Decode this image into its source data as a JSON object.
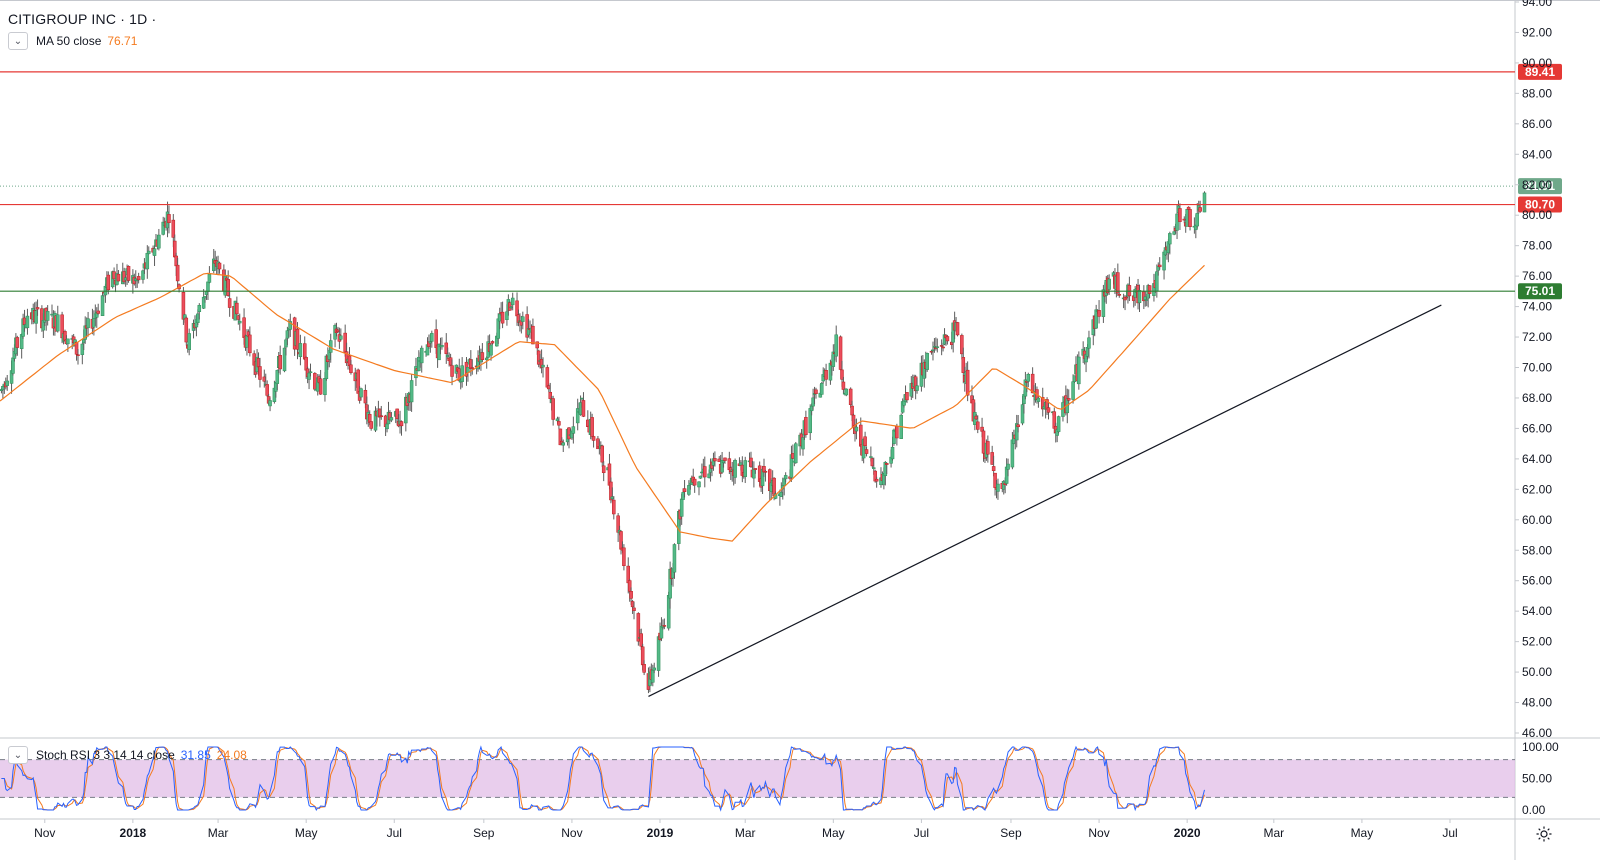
{
  "header": {
    "symbol_title": "CITIGROUP INC · 1D ·",
    "ma_label": "MA 50 close",
    "ma_value": "76.71"
  },
  "oscillator": {
    "label": "Stoch RSI 3 3 14 14 close",
    "k_value": "31.85",
    "d_value": "24.08"
  },
  "colors": {
    "up": "#53b987",
    "down": "#eb4d5c",
    "wick": "#5c5c5c",
    "ma": "#f47b20",
    "resistance": "#e53935",
    "support": "#2e7d32",
    "last_price": "#6fa88a",
    "stoch_k": "#2962ff",
    "stoch_d": "#f47b20",
    "stoch_band": "#e1bee7",
    "axis_text": "#131722",
    "grid": "#e0e3eb"
  },
  "icons": {
    "collapse": "chevron-down-icon",
    "settings": "gear-icon"
  },
  "chart_data": [
    {
      "type": "candlestick",
      "title": "CITIGROUP INC · 1D ·",
      "ylim": [
        46,
        94
      ],
      "y_ticks": [
        "94.00",
        "92.00",
        "90.00",
        "88.00",
        "86.00",
        "84.00",
        "82.00",
        "80.00",
        "78.00",
        "76.00",
        "74.00",
        "72.00",
        "70.00",
        "68.00",
        "66.00",
        "64.00",
        "62.00",
        "60.00",
        "58.00",
        "56.00",
        "54.00",
        "52.00",
        "50.00",
        "48.00",
        "46.00"
      ],
      "x_ticks": [
        "Nov",
        "2018",
        "Mar",
        "May",
        "Jul",
        "Sep",
        "Nov",
        "2019",
        "Mar",
        "May",
        "Jul",
        "Sep",
        "Nov",
        "2020",
        "Mar",
        "May",
        "Jul"
      ],
      "x_range": [
        "2017-10-01",
        "2020-08-15"
      ],
      "price_path": [
        [
          "2017-10-01",
          68.2
        ],
        [
          "2017-10-20",
          73.5
        ],
        [
          "2017-11-10",
          73.0
        ],
        [
          "2017-11-24",
          71.0
        ],
        [
          "2017-12-18",
          76.2
        ],
        [
          "2018-01-05",
          75.6
        ],
        [
          "2018-01-26",
          80.2
        ],
        [
          "2018-02-08",
          71.5
        ],
        [
          "2018-02-27",
          77.0
        ],
        [
          "2018-03-20",
          72.0
        ],
        [
          "2018-04-05",
          68.0
        ],
        [
          "2018-04-20",
          72.5
        ],
        [
          "2018-05-10",
          68.5
        ],
        [
          "2018-05-22",
          72.5
        ],
        [
          "2018-06-15",
          66.5
        ],
        [
          "2018-07-05",
          66.5
        ],
        [
          "2018-07-25",
          72.0
        ],
        [
          "2018-08-15",
          69.5
        ],
        [
          "2018-09-05",
          71.5
        ],
        [
          "2018-09-20",
          74.5
        ],
        [
          "2018-10-05",
          72.0
        ],
        [
          "2018-10-25",
          65.0
        ],
        [
          "2018-11-08",
          67.5
        ],
        [
          "2018-11-26",
          63.0
        ],
        [
          "2018-12-10",
          56.0
        ],
        [
          "2018-12-24",
          49.0
        ],
        [
          "2019-01-03",
          53.0
        ],
        [
          "2019-01-18",
          62.5
        ],
        [
          "2019-02-05",
          63.5
        ],
        [
          "2019-03-05",
          63.5
        ],
        [
          "2019-03-25",
          61.5
        ],
        [
          "2019-04-15",
          67.0
        ],
        [
          "2019-05-03",
          71.5
        ],
        [
          "2019-05-15",
          66.0
        ],
        [
          "2019-06-03",
          62.5
        ],
        [
          "2019-06-20",
          68.0
        ],
        [
          "2019-07-08",
          71.0
        ],
        [
          "2019-07-26",
          72.5
        ],
        [
          "2019-08-05",
          67.0
        ],
        [
          "2019-08-26",
          61.5
        ],
        [
          "2019-09-12",
          69.0
        ],
        [
          "2019-10-03",
          66.0
        ],
        [
          "2019-10-25",
          72.0
        ],
        [
          "2019-11-08",
          75.8
        ],
        [
          "2019-11-25",
          74.5
        ],
        [
          "2019-12-10",
          75.5
        ],
        [
          "2019-12-27",
          80.2
        ],
        [
          "2020-01-08",
          79.5
        ],
        [
          "2020-01-13",
          81.9
        ]
      ],
      "ma50_path": [
        [
          "2017-10-01",
          67.8
        ],
        [
          "2017-11-10",
          70.8
        ],
        [
          "2017-12-20",
          73.3
        ],
        [
          "2018-01-20",
          74.6
        ],
        [
          "2018-02-20",
          76.2
        ],
        [
          "2018-03-10",
          76.0
        ],
        [
          "2018-04-10",
          73.5
        ],
        [
          "2018-05-20",
          71.2
        ],
        [
          "2018-07-01",
          69.8
        ],
        [
          "2018-08-10",
          69.0
        ],
        [
          "2018-09-25",
          71.7
        ],
        [
          "2018-10-20",
          71.5
        ],
        [
          "2018-11-20",
          68.5
        ],
        [
          "2018-12-15",
          63.5
        ],
        [
          "2019-01-15",
          59.2
        ],
        [
          "2019-02-05",
          58.8
        ],
        [
          "2019-02-20",
          58.6
        ],
        [
          "2019-03-15",
          61.0
        ],
        [
          "2019-04-15",
          63.8
        ],
        [
          "2019-05-20",
          66.5
        ],
        [
          "2019-06-25",
          66.0
        ],
        [
          "2019-07-25",
          67.5
        ],
        [
          "2019-08-20",
          70.0
        ],
        [
          "2019-09-10",
          68.8
        ],
        [
          "2019-10-05",
          67.2
        ],
        [
          "2019-10-25",
          68.5
        ],
        [
          "2019-11-25",
          71.8
        ],
        [
          "2019-12-20",
          74.5
        ],
        [
          "2020-01-13",
          76.71
        ]
      ],
      "ma_label": "MA 50 close",
      "ma_last": 76.71,
      "horizontal_lines": [
        {
          "price": 89.41,
          "label": "89.41",
          "color": "resistance"
        },
        {
          "price": 80.7,
          "label": "80.70",
          "color": "resistance"
        },
        {
          "price": 75.01,
          "label": "75.01",
          "color": "support"
        }
      ],
      "last_price": {
        "price": 81.91,
        "label": "81.91"
      },
      "trendline": {
        "from": [
          "2018-12-24",
          48.4
        ],
        "to": [
          "2020-06-25",
          74.1
        ]
      },
      "grid": false,
      "legend_position": "top-left"
    },
    {
      "type": "line",
      "title": "Stoch RSI 3 3 14 14 close",
      "ylim": [
        0,
        100
      ],
      "y_ticks": [
        "100.00",
        "50.00",
        "0.00"
      ],
      "bands": [
        20,
        80
      ],
      "series": [
        {
          "name": "K",
          "last": 31.85
        },
        {
          "name": "D",
          "last": 24.08
        }
      ]
    }
  ]
}
